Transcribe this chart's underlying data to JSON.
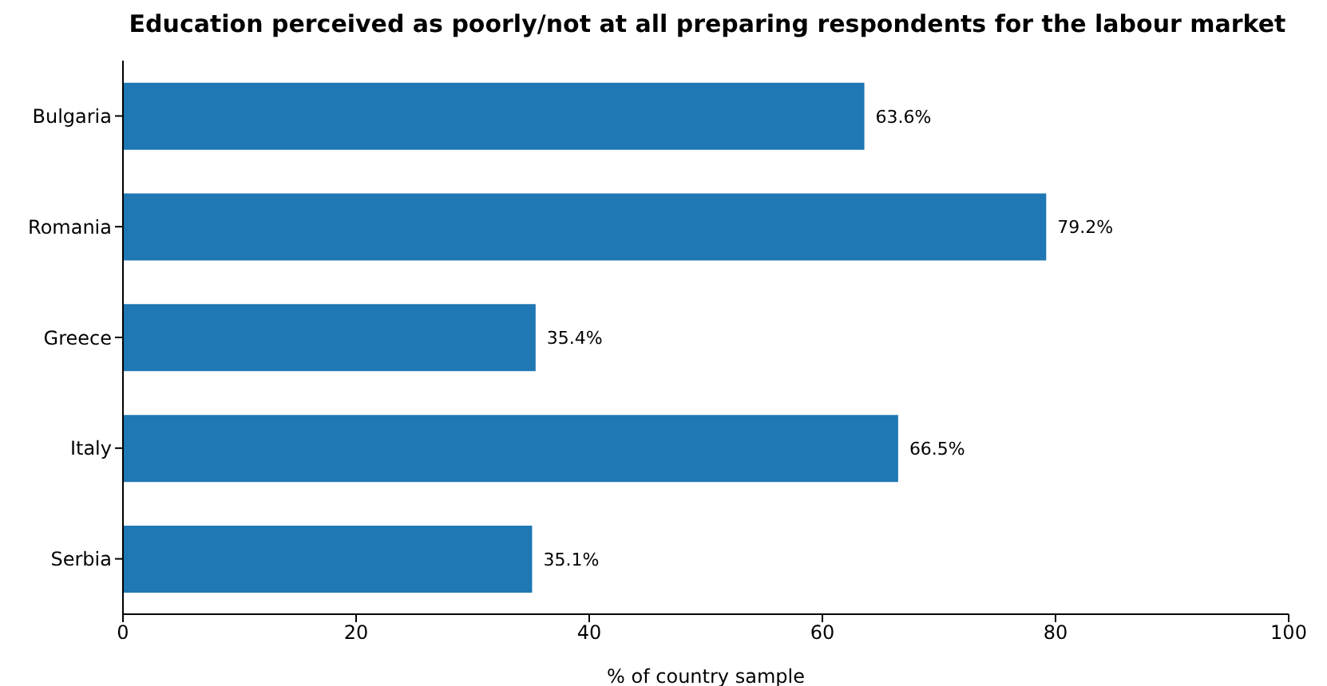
{
  "chart_data": {
    "type": "bar",
    "orientation": "horizontal",
    "title": "Education perceived as poorly/not at all preparing respondents for the labour market",
    "xlabel": "% of country sample",
    "categories": [
      "Bulgaria",
      "Romania",
      "Greece",
      "Italy",
      "Serbia"
    ],
    "values": [
      63.6,
      79.2,
      35.4,
      66.5,
      35.1
    ],
    "value_labels": [
      "63.6%",
      "79.2%",
      "35.4%",
      "66.5%",
      "35.1%"
    ],
    "color": "#1f77b4",
    "xlim": [
      0,
      100
    ],
    "xticks": [
      0,
      20,
      40,
      60,
      80,
      100
    ],
    "grid": false,
    "legend": false
  }
}
